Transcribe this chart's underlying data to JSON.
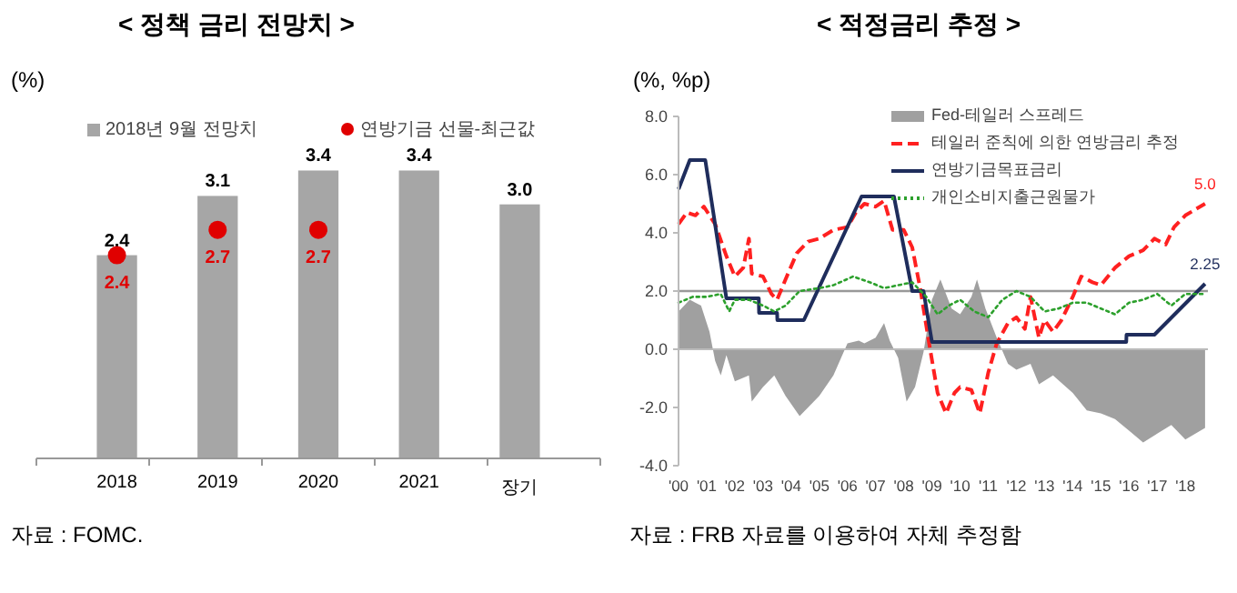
{
  "chart_data": [
    {
      "type": "bar",
      "title": "< 정책 금리 전망치 >",
      "ylabel": "(%)",
      "categories": [
        "2018",
        "2019",
        "2020",
        "2021",
        "장기"
      ],
      "series": [
        {
          "name": "2018년 9월 전망치",
          "color": "#a6a6a6",
          "values": [
            2.4,
            3.1,
            3.4,
            3.4,
            3.0
          ],
          "value_labels": [
            "2.4",
            "3.1",
            "3.4",
            "3.4",
            "3.0"
          ]
        },
        {
          "name": "연방기금 선물-최근값",
          "type": "scatter",
          "color": "#e00000",
          "values": [
            2.4,
            2.7,
            2.7,
            null,
            null
          ],
          "value_labels": [
            "2.4",
            "2.7",
            "2.7",
            null,
            null
          ]
        }
      ],
      "legend": "top",
      "tick_labels": "x",
      "marker": "circle",
      "annotations": [
        "자료 : FOMC."
      ]
    },
    {
      "type": "line",
      "title": "< 적정금리 추정 >",
      "ylabel": "(%, %p)",
      "xlim": [
        2000,
        2018.8
      ],
      "xticks": [
        {
          "value": 2000,
          "label": "'00"
        },
        {
          "value": 2001,
          "label": "'01"
        },
        {
          "value": 2002,
          "label": "'02"
        },
        {
          "value": 2003,
          "label": "'03"
        },
        {
          "value": 2004,
          "label": "'04"
        },
        {
          "value": 2005,
          "label": "'05"
        },
        {
          "value": 2006,
          "label": "'06"
        },
        {
          "value": 2007,
          "label": "'07"
        },
        {
          "value": 2008,
          "label": "'08"
        },
        {
          "value": 2009,
          "label": "'09"
        },
        {
          "value": 2010,
          "label": "'10"
        },
        {
          "value": 2011,
          "label": "'11"
        },
        {
          "value": 2012,
          "label": "'12"
        },
        {
          "value": 2013,
          "label": "'13"
        },
        {
          "value": 2014,
          "label": "'14"
        },
        {
          "value": 2015,
          "label": "'15"
        },
        {
          "value": 2016,
          "label": "'16"
        },
        {
          "value": 2017,
          "label": "'17"
        },
        {
          "value": 2018,
          "label": "'18"
        }
      ],
      "ylim": [
        -4,
        8
      ],
      "yticks": [
        {
          "value": -4,
          "label": "-4.0"
        },
        {
          "value": -2,
          "label": "-2.0"
        },
        {
          "value": 0,
          "label": "0.0"
        },
        {
          "value": 2,
          "label": "2.0"
        },
        {
          "value": 4,
          "label": "4.0"
        },
        {
          "value": 6,
          "label": "6.0"
        },
        {
          "value": 8,
          "label": "8.0"
        }
      ],
      "series": [
        {
          "name": "Fed-테일러 스프레드",
          "type": "area",
          "color": "#a0a0a0",
          "x": [
            2000,
            2000.4,
            2000.8,
            2001.1,
            2001.3,
            2001.5,
            2001.7,
            2002,
            2002.5,
            2002.6,
            2003,
            2003.4,
            2003.8,
            2004.3,
            2004.6,
            2005,
            2005.5,
            2006,
            2006.4,
            2006.6,
            2007,
            2007.3,
            2007.5,
            2007.8,
            2008.1,
            2008.4,
            2008.7,
            2009,
            2009.3,
            2009.7,
            2010,
            2010.4,
            2010.6,
            2010.9,
            2011.3,
            2011.7,
            2012,
            2012.5,
            2012.8,
            2013.3,
            2014,
            2014.5,
            2015,
            2015.5,
            2016,
            2016.5,
            2017,
            2017.5,
            2018,
            2018.7
          ],
          "values": [
            1.3,
            1.7,
            1.5,
            0.6,
            -0.4,
            -0.9,
            -0.2,
            -1.1,
            -0.9,
            -1.8,
            -1.3,
            -0.9,
            -1.6,
            -2.3,
            -2.0,
            -1.6,
            -0.9,
            0.2,
            0.3,
            0.2,
            0.4,
            0.9,
            0.3,
            -0.3,
            -1.8,
            -1.3,
            -0.1,
            1.7,
            2.4,
            1.4,
            1.2,
            1.8,
            2.4,
            1.4,
            0.4,
            -0.5,
            -0.7,
            -0.5,
            -1.2,
            -0.9,
            -1.5,
            -2.1,
            -2.2,
            -2.4,
            -2.8,
            -3.2,
            -2.9,
            -2.6,
            -3.1,
            -2.7
          ]
        },
        {
          "name": "테일러 준칙에 의한 연방금리 추정",
          "type": "line",
          "line_style": "dashed",
          "color": "#ff2020",
          "x": [
            2000,
            2000.3,
            2000.6,
            2000.9,
            2001.3,
            2001.7,
            2002,
            2002.3,
            2002.5,
            2002.6,
            2003,
            2003.3,
            2003.5,
            2003.8,
            2004.2,
            2004.6,
            2005,
            2005.5,
            2006,
            2006.3,
            2006.6,
            2007,
            2007.3,
            2007.6,
            2008,
            2008.3,
            2008.6,
            2008.9,
            2009.2,
            2009.5,
            2009.8,
            2010,
            2010.4,
            2010.7,
            2011,
            2011.3,
            2011.7,
            2012,
            2012.3,
            2012.5,
            2012.8,
            2013,
            2013.3,
            2013.6,
            2014,
            2014.3,
            2014.7,
            2015,
            2015.5,
            2016,
            2016.5,
            2016.9,
            2017.3,
            2017.6,
            2018,
            2018.7
          ],
          "values": [
            4.3,
            4.7,
            4.6,
            4.9,
            4.3,
            3.2,
            2.5,
            2.8,
            3.8,
            2.6,
            2.5,
            1.9,
            1.7,
            2.4,
            3.3,
            3.7,
            3.8,
            4.1,
            4.2,
            4.7,
            5.0,
            4.9,
            5.1,
            4.1,
            4.1,
            3.5,
            2.0,
            0.2,
            -1.5,
            -2.2,
            -1.5,
            -1.3,
            -1.4,
            -2.2,
            -0.8,
            0.2,
            0.9,
            1.1,
            0.7,
            1.8,
            0.4,
            1.0,
            0.6,
            1.0,
            1.8,
            2.5,
            2.3,
            2.2,
            2.8,
            3.2,
            3.4,
            3.8,
            3.6,
            4.2,
            4.6,
            5.0
          ]
        },
        {
          "name": "연방기금목표금리",
          "type": "line",
          "line_style": "solid",
          "color": "#1f2d5c",
          "x": [
            2000,
            2000.4,
            2000.95,
            2001.7,
            2002.85,
            2002.86,
            2003.5,
            2003.51,
            2004.45,
            2006.5,
            2007.65,
            2008.3,
            2008.7,
            2009.0,
            2015.9,
            2015.91,
            2016.9,
            2018.7
          ],
          "values": [
            5.5,
            6.5,
            6.5,
            1.75,
            1.75,
            1.25,
            1.25,
            1.0,
            1.0,
            5.25,
            5.25,
            2.0,
            2.0,
            0.25,
            0.25,
            0.5,
            0.5,
            2.25
          ]
        },
        {
          "name": "개인소비지출근원물가",
          "type": "line",
          "line_style": "dotted",
          "color": "#2ca02c",
          "x": [
            2000,
            2000.5,
            2001,
            2001.5,
            2001.8,
            2002,
            2002.5,
            2003,
            2003.4,
            2003.8,
            2004.3,
            2005,
            2005.5,
            2006.2,
            2006.8,
            2007.3,
            2007.8,
            2008.3,
            2008.8,
            2009.2,
            2009.6,
            2010,
            2010.5,
            2011,
            2011.5,
            2012,
            2012.5,
            2013,
            2013.5,
            2014,
            2014.5,
            2015,
            2015.5,
            2016,
            2016.5,
            2017,
            2017.5,
            2018,
            2018.7
          ],
          "values": [
            1.6,
            1.8,
            1.8,
            1.9,
            1.3,
            1.7,
            1.7,
            1.5,
            1.3,
            1.5,
            2.0,
            2.1,
            2.2,
            2.5,
            2.3,
            2.1,
            2.2,
            2.3,
            1.8,
            1.2,
            1.5,
            1.7,
            1.3,
            1.1,
            1.7,
            2.0,
            1.8,
            1.3,
            1.4,
            1.6,
            1.6,
            1.4,
            1.2,
            1.6,
            1.7,
            1.9,
            1.5,
            1.9,
            1.9
          ]
        }
      ],
      "ref_lines": [
        {
          "axis": "y",
          "value": 2,
          "color": "#999999"
        }
      ],
      "legend": "top right",
      "annotations": [
        {
          "text": "5.0",
          "x": 2018.7,
          "y": 5.0
        },
        {
          "text": "2.25",
          "x": 2018.7,
          "y": 2.25
        },
        "자료 : FRB 자료를 이용하여 자체 추정함"
      ]
    }
  ]
}
